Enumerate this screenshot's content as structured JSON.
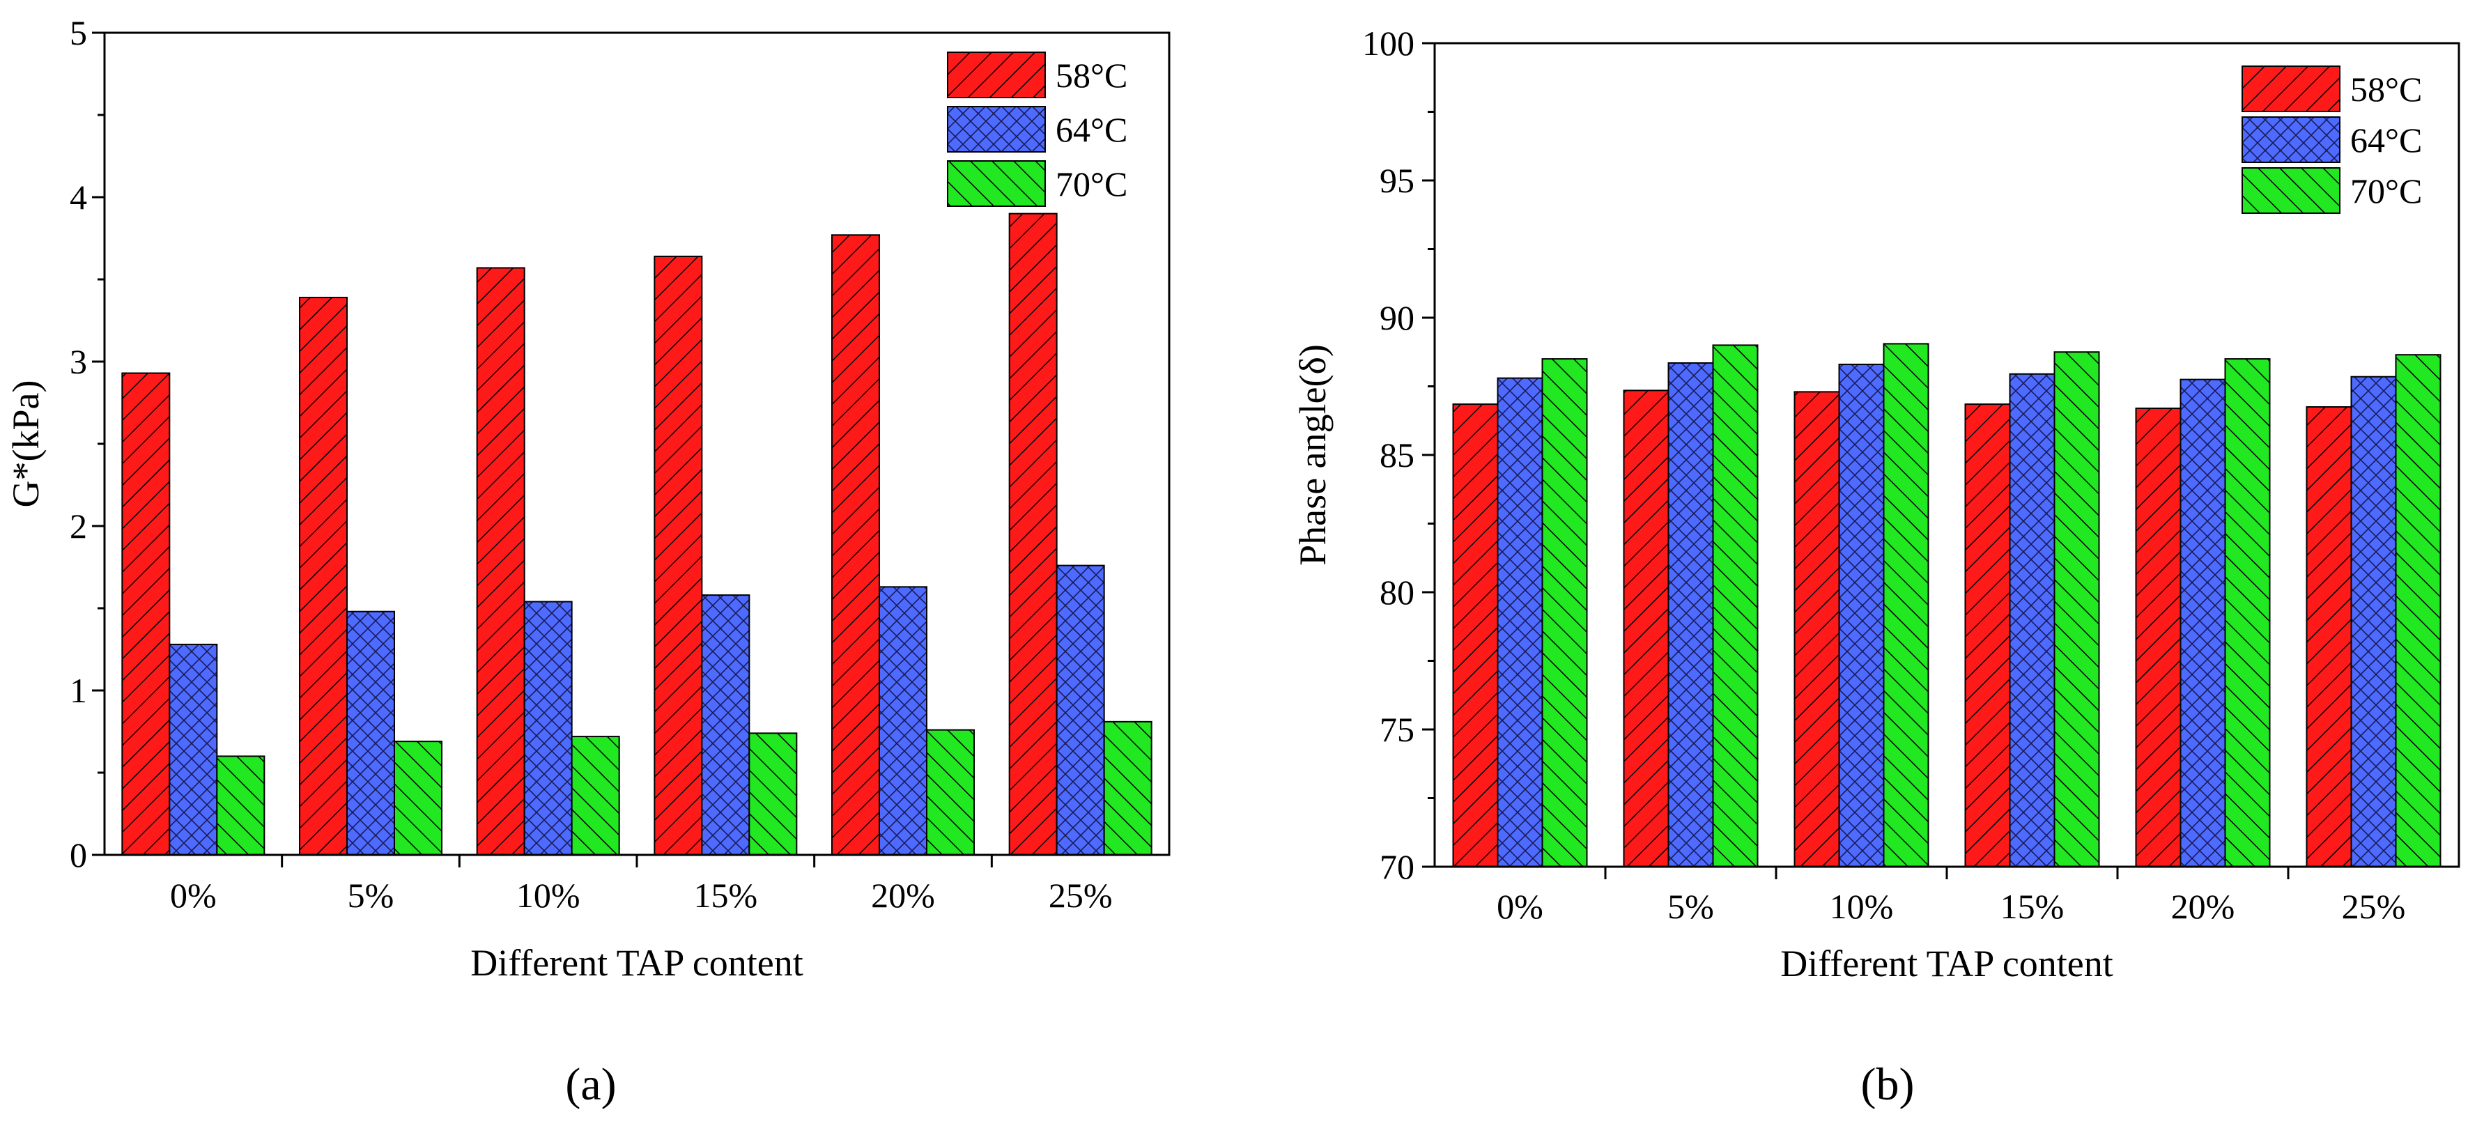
{
  "chart_data": [
    {
      "type": "bar",
      "panel_label": "(a)",
      "xlabel": "Different TAP content",
      "ylabel": "G*(kPa)",
      "categories": [
        "0%",
        "5%",
        "10%",
        "15%",
        "20%",
        "25%"
      ],
      "ylim": [
        0,
        5
      ],
      "yticks": [
        0,
        1,
        2,
        3,
        4,
        5
      ],
      "ytick_labels": [
        "0",
        "1",
        "2",
        "3",
        "4",
        "5"
      ],
      "legend_position": "top-right",
      "series": [
        {
          "name": "58°C",
          "values": [
            2.93,
            3.39,
            3.57,
            3.64,
            3.77,
            3.9
          ]
        },
        {
          "name": "64°C",
          "values": [
            1.28,
            1.48,
            1.54,
            1.58,
            1.63,
            1.76
          ]
        },
        {
          "name": "70°C",
          "values": [
            0.6,
            0.69,
            0.72,
            0.74,
            0.76,
            0.81
          ]
        }
      ]
    },
    {
      "type": "bar",
      "panel_label": "(b)",
      "xlabel": "Different TAP content",
      "ylabel": "Phase angle(δ)",
      "categories": [
        "0%",
        "5%",
        "10%",
        "15%",
        "20%",
        "25%"
      ],
      "ylim": [
        70,
        100
      ],
      "yticks": [
        70,
        75,
        80,
        85,
        90,
        95,
        100
      ],
      "ytick_labels": [
        "70",
        "75",
        "80",
        "85",
        "90",
        "95",
        "100"
      ],
      "legend_position": "top-right",
      "series": [
        {
          "name": "58°C",
          "values": [
            86.85,
            87.35,
            87.3,
            86.85,
            86.7,
            86.75
          ]
        },
        {
          "name": "64°C",
          "values": [
            87.8,
            88.35,
            88.3,
            87.95,
            87.75,
            87.85
          ]
        },
        {
          "name": "70°C",
          "values": [
            88.5,
            89.0,
            89.05,
            88.75,
            88.5,
            88.65
          ]
        }
      ]
    }
  ],
  "series_colors": [
    "#ff1a1a",
    "#4d6bff",
    "#22e822"
  ],
  "series_patterns": [
    "diagonal-hatch",
    "cross-hatch",
    "diagonal-hatch"
  ]
}
